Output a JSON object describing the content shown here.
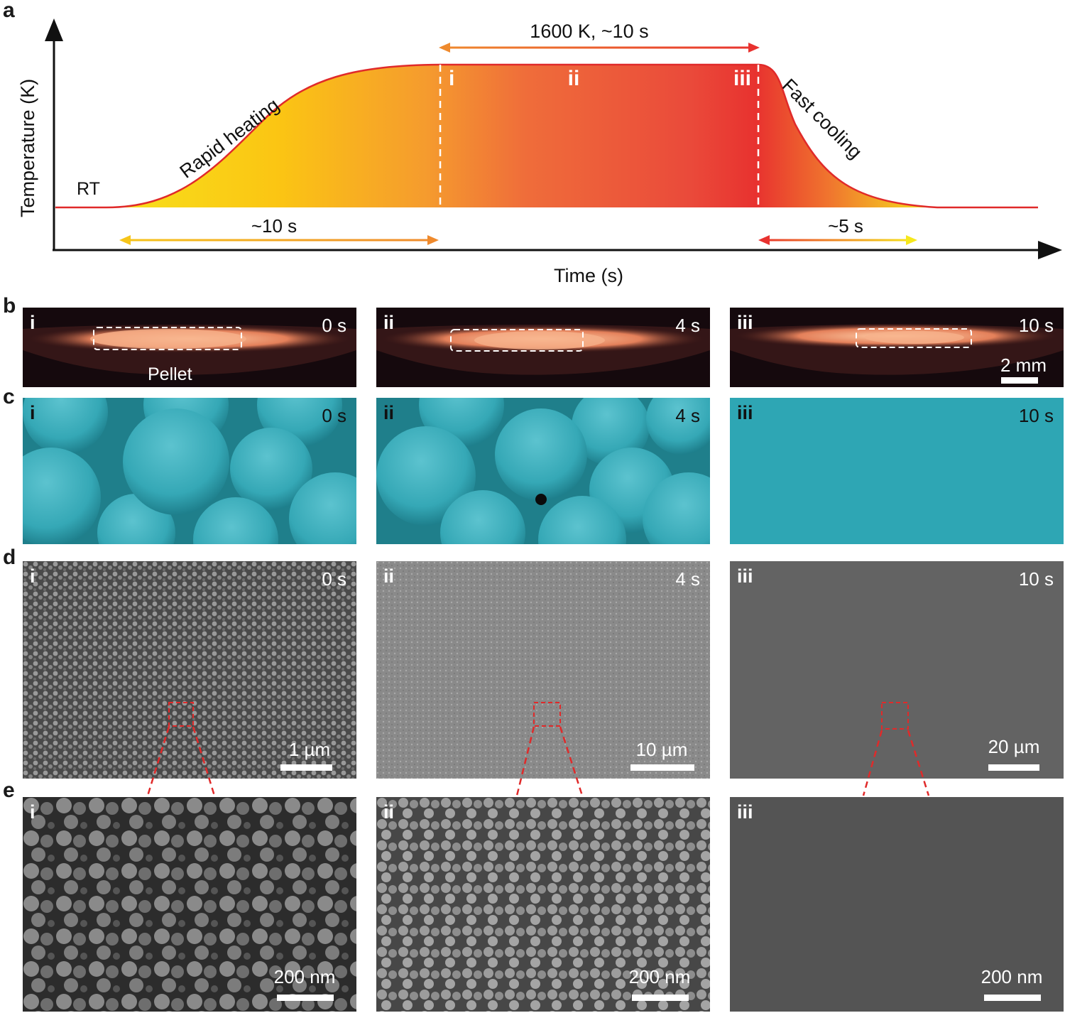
{
  "panels": {
    "a": "a",
    "b": "b",
    "c": "c",
    "d": "d",
    "e": "e"
  },
  "chart_data": {
    "type": "area",
    "xlabel": "Time (s)",
    "ylabel": "Temperature (K)",
    "labels": {
      "rt": "RT",
      "rapid": "Rapid heating",
      "fast": "Fast cooling",
      "plateau": "1600 K, ~10 s",
      "heat_dur": "~10 s",
      "cool_dur": "~5 s",
      "stage_i": "i",
      "stage_ii": "ii",
      "stage_iii": "iii"
    }
  },
  "columns": [
    {
      "roman": "i",
      "time": "0 s"
    },
    {
      "roman": "ii",
      "time": "4 s"
    },
    {
      "roman": "iii",
      "time": "10 s"
    }
  ],
  "row_b": {
    "pellet": "Pellet",
    "scale": "2 mm"
  },
  "row_d": {
    "scales": [
      "1 µm",
      "10 µm",
      "20 µm"
    ]
  },
  "row_e": {
    "scales": [
      "200 nm",
      "200 nm",
      "200 nm"
    ]
  },
  "colors": {
    "teal": "#2ea6b4",
    "curve": "#e02a2a",
    "hot": "#e8322f",
    "warm": "#f7c417"
  }
}
